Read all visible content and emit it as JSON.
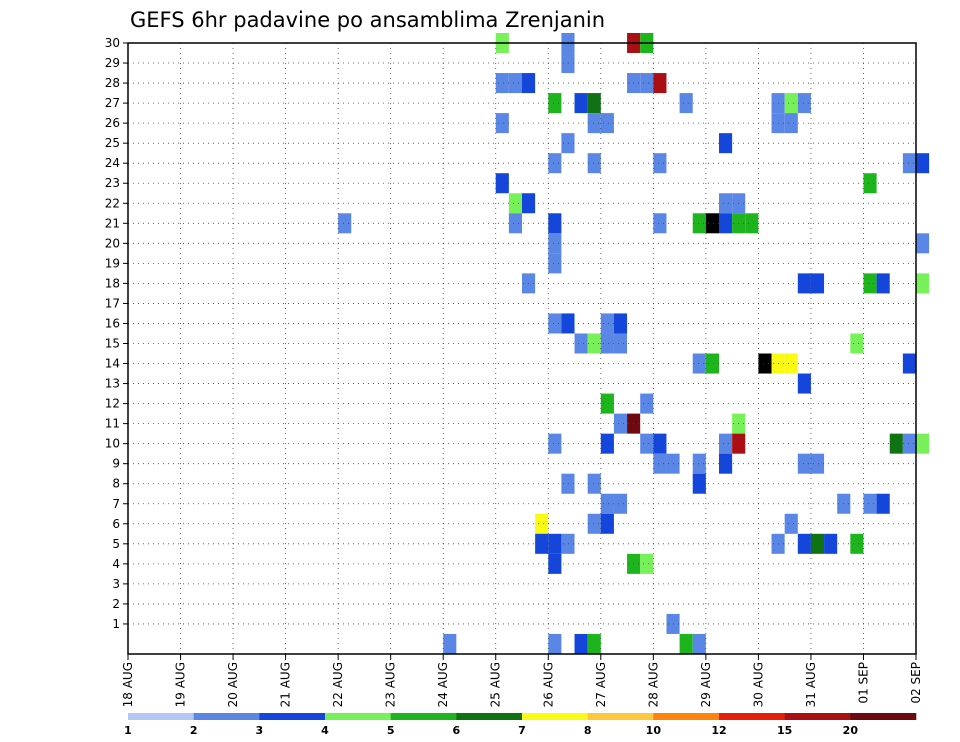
{
  "chart_data": {
    "type": "heatmap",
    "title": "GEFS 6hr padavine po ansamblima Zrenjanin",
    "xlabel": "",
    "ylabel": "",
    "x_ticks": [
      "18 AUG",
      "19 AUG",
      "20 AUG",
      "21 AUG",
      "22 AUG",
      "23 AUG",
      "24 AUG",
      "25 AUG",
      "26 AUG",
      "27 AUG",
      "28 AUG",
      "29 AUG",
      "30 AUG",
      "31 AUG",
      "01 SEP",
      "02 SEP"
    ],
    "y_ticks": [
      1,
      2,
      3,
      4,
      5,
      6,
      7,
      8,
      9,
      10,
      11,
      12,
      13,
      14,
      15,
      16,
      17,
      18,
      19,
      20,
      21,
      22,
      23,
      24,
      25,
      26,
      27,
      28,
      29,
      30
    ],
    "ylim": [
      0,
      30
    ],
    "time_steps_per_day": 4,
    "grid": true,
    "colorbar": {
      "position": "bottom",
      "labels": [
        "1",
        "2",
        "3",
        "4",
        "5",
        "6",
        "7",
        "8",
        "10",
        "12",
        "15",
        "20"
      ],
      "colors": [
        "#b4c8f5",
        "#5a87e6",
        "#1446dc",
        "#78f05a",
        "#1eb41e",
        "#0f7314",
        "#fafa14",
        "#ffc83c",
        "#ff820a",
        "#e61e0a",
        "#aa0f14",
        "#6e0a0f"
      ]
    },
    "cells": [
      [
        28,
        30,
        3
      ],
      [
        33,
        30,
        1
      ],
      [
        38,
        30,
        10
      ],
      [
        39,
        30,
        4
      ],
      [
        33,
        29,
        1
      ],
      [
        28,
        28,
        1
      ],
      [
        29,
        28,
        1
      ],
      [
        30,
        28,
        2
      ],
      [
        38,
        28,
        1
      ],
      [
        39,
        28,
        1
      ],
      [
        40,
        28,
        10
      ],
      [
        32,
        27,
        4
      ],
      [
        34,
        27,
        2
      ],
      [
        35,
        27,
        5
      ],
      [
        42,
        27,
        1
      ],
      [
        49,
        27,
        1
      ],
      [
        50,
        27,
        3
      ],
      [
        51,
        27,
        1
      ],
      [
        28,
        26,
        1
      ],
      [
        35,
        26,
        1
      ],
      [
        36,
        26,
        1
      ],
      [
        49,
        26,
        1
      ],
      [
        50,
        26,
        1
      ],
      [
        33,
        25,
        1
      ],
      [
        45,
        25,
        2
      ],
      [
        32,
        24,
        1
      ],
      [
        35,
        24,
        1
      ],
      [
        40,
        24,
        1
      ],
      [
        59,
        24,
        1
      ],
      [
        60,
        24,
        2
      ],
      [
        28,
        23,
        2
      ],
      [
        56,
        23,
        4
      ],
      [
        29,
        22,
        3
      ],
      [
        30,
        22,
        2
      ],
      [
        45,
        22,
        1
      ],
      [
        46,
        22,
        1
      ],
      [
        16,
        21,
        1
      ],
      [
        29,
        21,
        1
      ],
      [
        32,
        21,
        2
      ],
      [
        40,
        21,
        1
      ],
      [
        43,
        21,
        4
      ],
      [
        44,
        21,
        12
      ],
      [
        45,
        21,
        2
      ],
      [
        46,
        21,
        4
      ],
      [
        47,
        21,
        4
      ],
      [
        32,
        20,
        1
      ],
      [
        60,
        20,
        1
      ],
      [
        32,
        19,
        1
      ],
      [
        30,
        18,
        1
      ],
      [
        51,
        18,
        2
      ],
      [
        52,
        18,
        2
      ],
      [
        56,
        18,
        4
      ],
      [
        57,
        18,
        2
      ],
      [
        60,
        18,
        3
      ],
      [
        32,
        16,
        1
      ],
      [
        33,
        16,
        2
      ],
      [
        36,
        16,
        1
      ],
      [
        37,
        16,
        2
      ],
      [
        34,
        15,
        1
      ],
      [
        35,
        15,
        3
      ],
      [
        36,
        15,
        1
      ],
      [
        37,
        15,
        1
      ],
      [
        55,
        15,
        3
      ],
      [
        43,
        14,
        1
      ],
      [
        44,
        14,
        4
      ],
      [
        48,
        14,
        12
      ],
      [
        49,
        14,
        6
      ],
      [
        50,
        14,
        6
      ],
      [
        59,
        14,
        2
      ],
      [
        51,
        13,
        2
      ],
      [
        36,
        12,
        4
      ],
      [
        39,
        12,
        1
      ],
      [
        37,
        11,
        1
      ],
      [
        38,
        11,
        11
      ],
      [
        46,
        11,
        3
      ],
      [
        32,
        10,
        1
      ],
      [
        36,
        10,
        2
      ],
      [
        39,
        10,
        1
      ],
      [
        40,
        10,
        2
      ],
      [
        45,
        10,
        1
      ],
      [
        46,
        10,
        10
      ],
      [
        58,
        10,
        5
      ],
      [
        59,
        10,
        1
      ],
      [
        60,
        10,
        3
      ],
      [
        40,
        9,
        1
      ],
      [
        41,
        9,
        1
      ],
      [
        43,
        9,
        1
      ],
      [
        45,
        9,
        2
      ],
      [
        51,
        9,
        1
      ],
      [
        52,
        9,
        1
      ],
      [
        33,
        8,
        1
      ],
      [
        35,
        8,
        1
      ],
      [
        43,
        8,
        2
      ],
      [
        36,
        7,
        1
      ],
      [
        37,
        7,
        1
      ],
      [
        54,
        7,
        1
      ],
      [
        56,
        7,
        1
      ],
      [
        57,
        7,
        2
      ],
      [
        31,
        6,
        6
      ],
      [
        35,
        6,
        1
      ],
      [
        36,
        6,
        2
      ],
      [
        50,
        6,
        1
      ],
      [
        31,
        5,
        2
      ],
      [
        32,
        5,
        2
      ],
      [
        33,
        5,
        1
      ],
      [
        49,
        5,
        1
      ],
      [
        51,
        5,
        2
      ],
      [
        52,
        5,
        5
      ],
      [
        53,
        5,
        2
      ],
      [
        55,
        5,
        4
      ],
      [
        32,
        4,
        2
      ],
      [
        38,
        4,
        4
      ],
      [
        39,
        4,
        3
      ],
      [
        41,
        1,
        1
      ],
      [
        24,
        0,
        1
      ],
      [
        32,
        0,
        1
      ],
      [
        34,
        0,
        2
      ],
      [
        35,
        0,
        4
      ],
      [
        42,
        0,
        4
      ],
      [
        43,
        0,
        1
      ]
    ]
  }
}
